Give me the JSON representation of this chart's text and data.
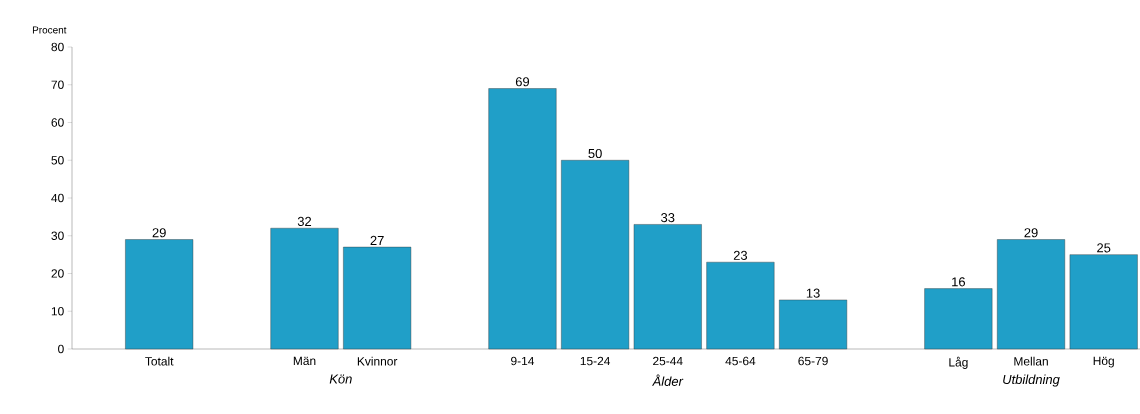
{
  "chart_data": {
    "type": "bar",
    "ylabel": "Procent",
    "categories": [
      "Totalt",
      null,
      "Män",
      "Kvinnor",
      null,
      "9-14",
      "15-24",
      "25-44",
      "45-64",
      "65-79",
      null,
      "Låg",
      "Mellan",
      "Hög"
    ],
    "values": [
      29,
      null,
      32,
      27,
      null,
      69,
      50,
      33,
      23,
      13,
      null,
      16,
      29,
      25
    ],
    "color": "#209fc8",
    "ylim": [
      0,
      80
    ],
    "yticks": [
      0,
      10,
      20,
      30,
      40,
      50,
      60,
      70,
      80
    ],
    "data_labels": true,
    "grid": false,
    "annotations": [
      "Kön",
      "Ålder",
      "Utbildning"
    ]
  }
}
